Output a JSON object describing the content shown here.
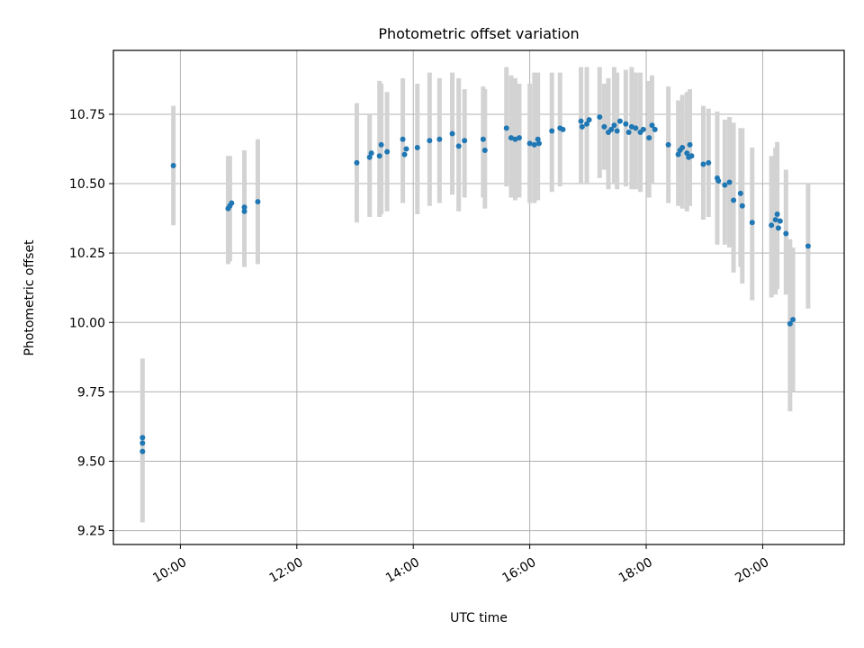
{
  "chart_data": {
    "type": "scatter",
    "title": "Photometric offset variation",
    "xlabel": "UTC time",
    "ylabel": "Photometric offset",
    "x_unit": "hours UTC",
    "xlim": [
      8.85,
      21.4
    ],
    "ylim": [
      9.2,
      10.98
    ],
    "grid": true,
    "x_ticks": [
      {
        "value": 10,
        "label": "10:00"
      },
      {
        "value": 12,
        "label": "12:00"
      },
      {
        "value": 14,
        "label": "14:00"
      },
      {
        "value": 16,
        "label": "16:00"
      },
      {
        "value": 18,
        "label": "18:00"
      },
      {
        "value": 20,
        "label": "20:00"
      }
    ],
    "y_ticks": [
      {
        "value": 9.25,
        "label": "9.25"
      },
      {
        "value": 9.5,
        "label": "9.50"
      },
      {
        "value": 9.75,
        "label": "9.75"
      },
      {
        "value": 10.0,
        "label": "10.00"
      },
      {
        "value": 10.25,
        "label": "10.25"
      },
      {
        "value": 10.5,
        "label": "10.50"
      },
      {
        "value": 10.75,
        "label": "10.75"
      }
    ],
    "colors": {
      "point": "#1f77b4",
      "errorbar": "#d3d3d3",
      "grid": "#b0b0b0",
      "axis": "#000000"
    },
    "series": [
      {
        "name": "offset",
        "points": [
          {
            "x": 9.35,
            "y": 9.585,
            "lo": 9.28,
            "hi": 9.87
          },
          {
            "x": 9.35,
            "y": 9.565
          },
          {
            "x": 9.35,
            "y": 9.535
          },
          {
            "x": 9.88,
            "y": 10.565,
            "lo": 10.35,
            "hi": 10.78
          },
          {
            "x": 10.82,
            "y": 10.41,
            "lo": 10.21,
            "hi": 10.6
          },
          {
            "x": 10.85,
            "y": 10.42,
            "lo": 10.22,
            "hi": 10.6
          },
          {
            "x": 10.88,
            "y": 10.43
          },
          {
            "x": 11.1,
            "y": 10.4,
            "lo": 10.2,
            "hi": 10.62
          },
          {
            "x": 11.1,
            "y": 10.415
          },
          {
            "x": 11.33,
            "y": 10.435,
            "lo": 10.21,
            "hi": 10.66
          },
          {
            "x": 13.03,
            "y": 10.575,
            "lo": 10.36,
            "hi": 10.79
          },
          {
            "x": 13.25,
            "y": 10.595,
            "lo": 10.38,
            "hi": 10.75
          },
          {
            "x": 13.28,
            "y": 10.61
          },
          {
            "x": 13.42,
            "y": 10.6,
            "lo": 10.38,
            "hi": 10.87
          },
          {
            "x": 13.45,
            "y": 10.64,
            "lo": 10.39,
            "hi": 10.86
          },
          {
            "x": 13.55,
            "y": 10.615,
            "lo": 10.4,
            "hi": 10.83
          },
          {
            "x": 13.82,
            "y": 10.66,
            "lo": 10.43,
            "hi": 10.88
          },
          {
            "x": 13.85,
            "y": 10.605
          },
          {
            "x": 13.88,
            "y": 10.625
          },
          {
            "x": 14.07,
            "y": 10.63,
            "lo": 10.39,
            "hi": 10.86
          },
          {
            "x": 14.28,
            "y": 10.655,
            "lo": 10.42,
            "hi": 10.9
          },
          {
            "x": 14.45,
            "y": 10.66,
            "lo": 10.43,
            "hi": 10.88
          },
          {
            "x": 14.67,
            "y": 10.68,
            "lo": 10.46,
            "hi": 10.9
          },
          {
            "x": 14.78,
            "y": 10.635,
            "lo": 10.4,
            "hi": 10.88
          },
          {
            "x": 14.88,
            "y": 10.655,
            "lo": 10.45,
            "hi": 10.84
          },
          {
            "x": 15.2,
            "y": 10.66,
            "lo": 10.45,
            "hi": 10.85
          },
          {
            "x": 15.23,
            "y": 10.62,
            "lo": 10.41,
            "hi": 10.84
          },
          {
            "x": 15.6,
            "y": 10.7,
            "lo": 10.49,
            "hi": 10.92
          },
          {
            "x": 15.68,
            "y": 10.665,
            "lo": 10.45,
            "hi": 10.89
          },
          {
            "x": 15.75,
            "y": 10.66,
            "lo": 10.44,
            "hi": 10.88
          },
          {
            "x": 15.82,
            "y": 10.665,
            "lo": 10.45,
            "hi": 10.86
          },
          {
            "x": 16.0,
            "y": 10.645,
            "lo": 10.43,
            "hi": 10.86
          },
          {
            "x": 16.08,
            "y": 10.64,
            "lo": 10.43,
            "hi": 10.9
          },
          {
            "x": 16.14,
            "y": 10.66,
            "lo": 10.44,
            "hi": 10.9
          },
          {
            "x": 16.16,
            "y": 10.645
          },
          {
            "x": 16.38,
            "y": 10.69,
            "lo": 10.47,
            "hi": 10.9
          },
          {
            "x": 16.52,
            "y": 10.7,
            "lo": 10.49,
            "hi": 10.9
          },
          {
            "x": 16.57,
            "y": 10.695
          },
          {
            "x": 16.88,
            "y": 10.725,
            "lo": 10.5,
            "hi": 10.92
          },
          {
            "x": 16.9,
            "y": 10.705
          },
          {
            "x": 16.98,
            "y": 10.715,
            "lo": 10.5,
            "hi": 10.92
          },
          {
            "x": 17.02,
            "y": 10.73
          },
          {
            "x": 17.2,
            "y": 10.74,
            "lo": 10.52,
            "hi": 10.92
          },
          {
            "x": 17.28,
            "y": 10.705,
            "lo": 10.55,
            "hi": 10.86
          },
          {
            "x": 17.35,
            "y": 10.685,
            "lo": 10.48,
            "hi": 10.88
          },
          {
            "x": 17.4,
            "y": 10.695
          },
          {
            "x": 17.45,
            "y": 10.71,
            "lo": 10.5,
            "hi": 10.92
          },
          {
            "x": 17.5,
            "y": 10.69,
            "lo": 10.48,
            "hi": 10.9
          },
          {
            "x": 17.55,
            "y": 10.725
          },
          {
            "x": 17.65,
            "y": 10.715,
            "lo": 10.49,
            "hi": 10.91
          },
          {
            "x": 17.7,
            "y": 10.685
          },
          {
            "x": 17.75,
            "y": 10.705,
            "lo": 10.48,
            "hi": 10.92
          },
          {
            "x": 17.82,
            "y": 10.7,
            "lo": 10.48,
            "hi": 10.9
          },
          {
            "x": 17.9,
            "y": 10.685,
            "lo": 10.47,
            "hi": 10.9
          },
          {
            "x": 17.95,
            "y": 10.695
          },
          {
            "x": 18.05,
            "y": 10.665,
            "lo": 10.45,
            "hi": 10.87
          },
          {
            "x": 18.1,
            "y": 10.71,
            "lo": 10.5,
            "hi": 10.89
          },
          {
            "x": 18.15,
            "y": 10.695
          },
          {
            "x": 18.38,
            "y": 10.64,
            "lo": 10.43,
            "hi": 10.85
          },
          {
            "x": 18.55,
            "y": 10.605,
            "lo": 10.42,
            "hi": 10.8
          },
          {
            "x": 18.58,
            "y": 10.62
          },
          {
            "x": 18.62,
            "y": 10.63,
            "lo": 10.41,
            "hi": 10.82
          },
          {
            "x": 18.7,
            "y": 10.61,
            "lo": 10.4,
            "hi": 10.83
          },
          {
            "x": 18.73,
            "y": 10.595
          },
          {
            "x": 18.75,
            "y": 10.64,
            "lo": 10.42,
            "hi": 10.84
          },
          {
            "x": 18.78,
            "y": 10.6
          },
          {
            "x": 18.98,
            "y": 10.57,
            "lo": 10.37,
            "hi": 10.78
          },
          {
            "x": 19.07,
            "y": 10.575,
            "lo": 10.38,
            "hi": 10.77
          },
          {
            "x": 19.22,
            "y": 10.52,
            "lo": 10.28,
            "hi": 10.76
          },
          {
            "x": 19.24,
            "y": 10.51
          },
          {
            "x": 19.35,
            "y": 10.495,
            "lo": 10.28,
            "hi": 10.73
          },
          {
            "x": 19.43,
            "y": 10.505,
            "lo": 10.27,
            "hi": 10.74
          },
          {
            "x": 19.5,
            "y": 10.44,
            "lo": 10.18,
            "hi": 10.72
          },
          {
            "x": 19.62,
            "y": 10.465,
            "lo": 10.2,
            "hi": 10.7
          },
          {
            "x": 19.65,
            "y": 10.42,
            "lo": 10.14,
            "hi": 10.7
          },
          {
            "x": 19.82,
            "y": 10.36,
            "lo": 10.08,
            "hi": 10.63
          },
          {
            "x": 20.15,
            "y": 10.35,
            "lo": 10.09,
            "hi": 10.6
          },
          {
            "x": 20.22,
            "y": 10.37,
            "lo": 10.1,
            "hi": 10.63
          },
          {
            "x": 20.25,
            "y": 10.39,
            "lo": 10.12,
            "hi": 10.65
          },
          {
            "x": 20.27,
            "y": 10.34
          },
          {
            "x": 20.3,
            "y": 10.365
          },
          {
            "x": 20.4,
            "y": 10.32,
            "lo": 10.1,
            "hi": 10.55
          },
          {
            "x": 20.47,
            "y": 9.995,
            "lo": 9.68,
            "hi": 10.3
          },
          {
            "x": 20.52,
            "y": 10.01,
            "lo": 9.75,
            "hi": 10.27
          },
          {
            "x": 20.78,
            "y": 10.275,
            "lo": 10.05,
            "hi": 10.5
          }
        ]
      }
    ]
  }
}
